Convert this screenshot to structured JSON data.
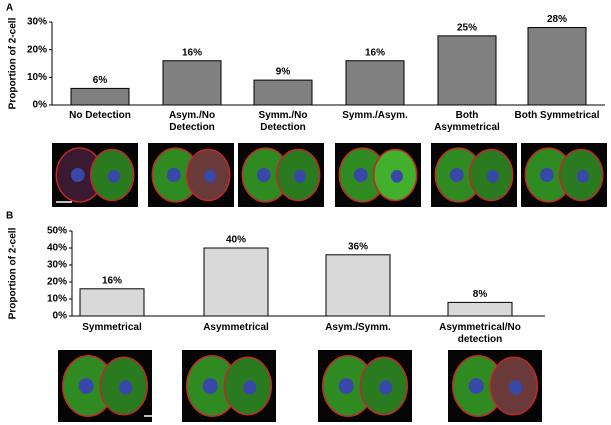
{
  "chart_data": [
    {
      "type": "bar",
      "panel": "A",
      "y_label": "Proportion of  2-cell",
      "categories": [
        "No Detection",
        "Asym./No\nDetection",
        "Symm./No\nDetection",
        "Symm./Asym.",
        "Both\nAsymmetrical",
        "Both Symmetrical"
      ],
      "values": [
        6,
        16,
        9,
        16,
        25,
        28
      ],
      "value_labels": [
        "6%",
        "16%",
        "9%",
        "16%",
        "25%",
        "28%"
      ],
      "color": "#808080",
      "ylim": [
        0,
        30
      ],
      "yticks": [
        {
          "value": 0,
          "label": "0%"
        },
        {
          "value": 10,
          "label": "10%"
        },
        {
          "value": 20,
          "label": "20%"
        },
        {
          "value": 30,
          "label": "30%"
        }
      ]
    },
    {
      "type": "bar",
      "panel": "B",
      "y_label": "Proportion of  2-cell",
      "categories": [
        "Symmetrical",
        "Asymmetrical",
        "Asym./Symm.",
        "Asymmetrical/No\ndetection"
      ],
      "values": [
        16,
        40,
        36,
        8
      ],
      "value_labels": [
        "16%",
        "40%",
        "36%",
        "8%"
      ],
      "color": "#d9d9d9",
      "ylim": [
        0,
        50
      ],
      "yticks": [
        {
          "value": 0,
          "label": "0%"
        },
        {
          "value": 10,
          "label": "10%"
        },
        {
          "value": 20,
          "label": "20%"
        },
        {
          "value": 30,
          "label": "30%"
        },
        {
          "value": 40,
          "label": "40%"
        },
        {
          "value": 50,
          "label": "50%"
        }
      ]
    }
  ]
}
